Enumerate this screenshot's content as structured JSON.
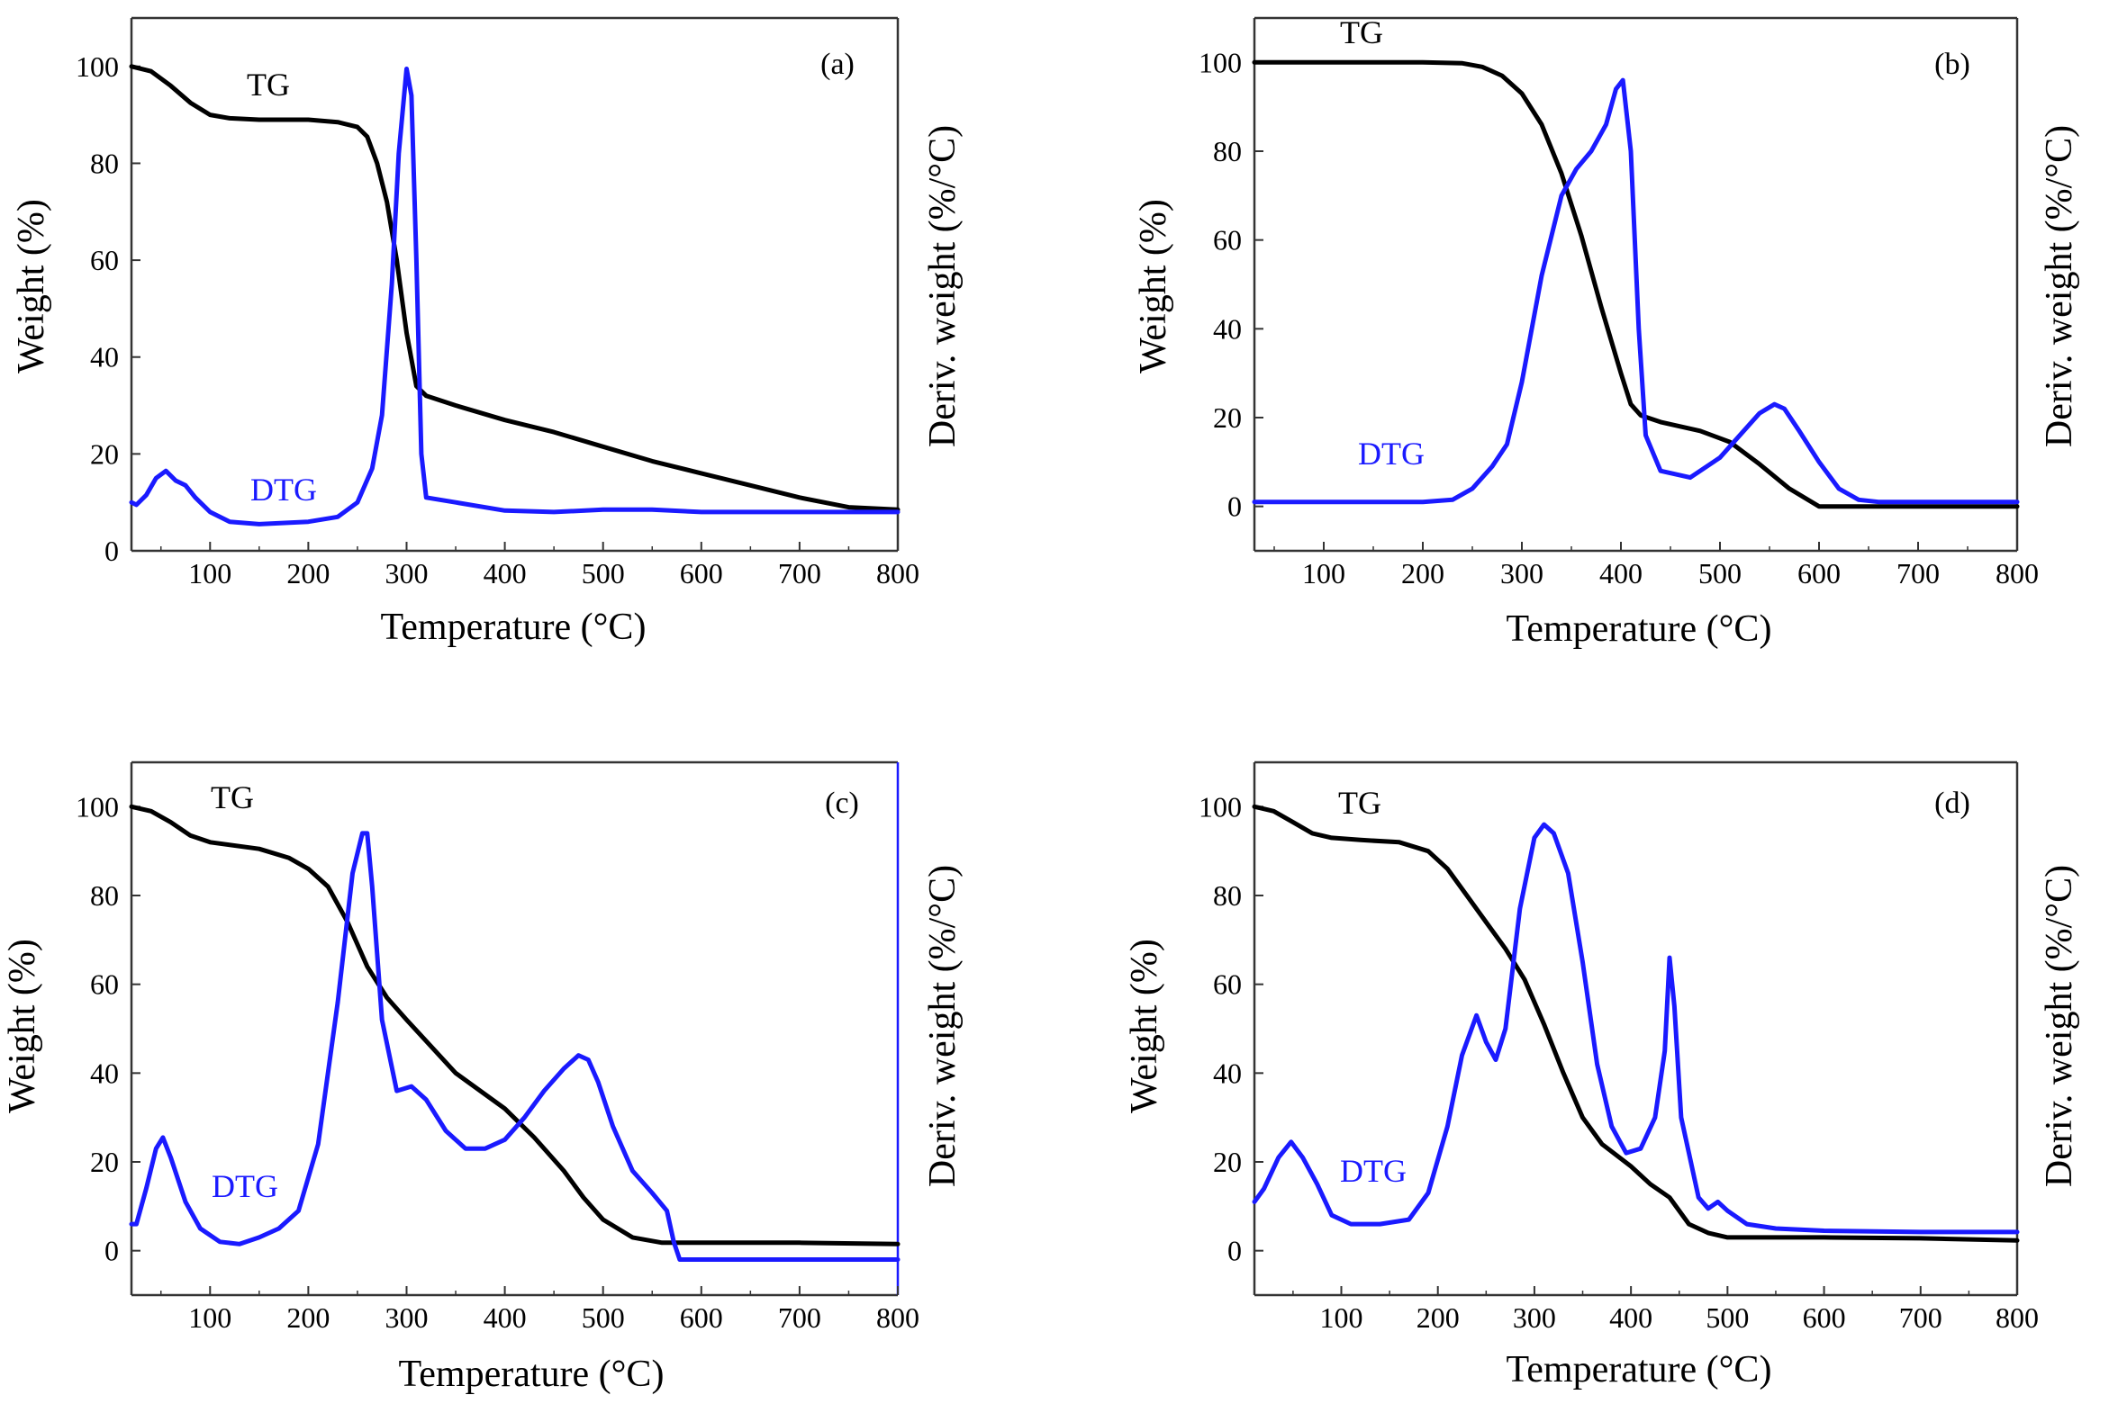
{
  "chart_data": [
    {
      "type": "line",
      "panel_label": "(a)",
      "xlabel": "Temperature (°C)",
      "ylabel": "Weight (%)",
      "ylabel_right": "Deriv. weight (%/°C)",
      "xlim": [
        20,
        800
      ],
      "ylim": [
        0,
        110
      ],
      "xticks": [
        100,
        200,
        300,
        400,
        500,
        600,
        700,
        800
      ],
      "yticks": [
        0,
        20,
        40,
        60,
        80,
        100
      ],
      "tg_label": "TG",
      "dtg_label": "DTG",
      "colors": {
        "tg": "#000000",
        "dtg": "#1a1aff"
      },
      "series": [
        {
          "name": "TG",
          "x": [
            20,
            40,
            60,
            80,
            100,
            120,
            150,
            200,
            230,
            250,
            260,
            270,
            280,
            290,
            300,
            310,
            320,
            350,
            400,
            450,
            500,
            550,
            600,
            650,
            700,
            750,
            800
          ],
          "y": [
            100,
            99,
            96,
            92.5,
            90,
            89.3,
            89,
            89,
            88.5,
            87.5,
            85.5,
            80,
            72,
            60,
            45,
            34,
            32,
            30,
            27,
            24.5,
            21.5,
            18.5,
            16,
            13.5,
            11,
            9,
            8.5
          ]
        },
        {
          "name": "DTG",
          "x": [
            20,
            25,
            35,
            45,
            55,
            65,
            75,
            85,
            100,
            120,
            150,
            200,
            230,
            250,
            265,
            275,
            285,
            292,
            300,
            305,
            310,
            315,
            320,
            350,
            400,
            450,
            500,
            550,
            600,
            700,
            800
          ],
          "y": [
            10,
            9.5,
            11.5,
            15,
            16.5,
            14.5,
            13.5,
            11,
            8,
            6,
            5.5,
            6,
            7,
            10,
            17,
            28,
            55,
            82,
            99.5,
            94,
            60,
            20,
            11,
            10,
            8.3,
            8,
            8.5,
            8.5,
            8,
            8,
            8
          ]
        }
      ]
    },
    {
      "type": "line",
      "panel_label": "(b)",
      "xlabel": "Temperature (°C)",
      "ylabel": "Weight (%)",
      "ylabel_right": "Deriv. weight (%/°C)",
      "xlim": [
        30,
        800
      ],
      "ylim": [
        -10,
        110
      ],
      "xticks": [
        100,
        200,
        300,
        400,
        500,
        600,
        700,
        800
      ],
      "yticks": [
        0,
        20,
        40,
        60,
        80,
        100
      ],
      "tg_label": "TG",
      "dtg_label": "DTG",
      "colors": {
        "tg": "#000000",
        "dtg": "#1a1aff"
      },
      "series": [
        {
          "name": "TG",
          "x": [
            30,
            100,
            200,
            240,
            260,
            280,
            300,
            320,
            340,
            360,
            380,
            400,
            410,
            420,
            440,
            480,
            510,
            540,
            570,
            600,
            700,
            800
          ],
          "y": [
            100,
            100,
            100,
            99.8,
            99,
            97,
            93,
            86,
            75,
            61,
            45,
            30,
            23,
            20.5,
            19,
            17,
            14.5,
            9.5,
            4,
            0,
            0,
            0
          ]
        },
        {
          "name": "DTG",
          "x": [
            30,
            100,
            200,
            230,
            250,
            270,
            285,
            300,
            320,
            340,
            355,
            370,
            385,
            395,
            402,
            410,
            418,
            425,
            440,
            470,
            500,
            520,
            540,
            555,
            565,
            580,
            600,
            620,
            640,
            660,
            700,
            800
          ],
          "y": [
            1,
            1,
            1,
            1.5,
            4,
            9,
            14,
            28,
            52,
            70,
            76,
            80,
            86,
            94,
            96,
            80,
            40,
            16,
            8,
            6.5,
            11,
            16,
            21,
            23,
            22,
            17,
            10,
            4,
            1.5,
            1,
            1,
            1
          ]
        }
      ]
    },
    {
      "type": "line",
      "panel_label": "(c)",
      "xlabel": "Temperature (°C)",
      "ylabel": "Weight (%)",
      "ylabel_right": "Deriv. weight (%/°C)",
      "xlim": [
        20,
        800
      ],
      "ylim": [
        -10,
        110
      ],
      "xticks": [
        100,
        200,
        300,
        400,
        500,
        600,
        700,
        800
      ],
      "yticks": [
        0,
        20,
        40,
        60,
        80,
        100
      ],
      "tg_label": "TG",
      "dtg_label": "DTG",
      "colors": {
        "tg": "#000000",
        "dtg": "#1a1aff"
      },
      "series": [
        {
          "name": "TG",
          "x": [
            20,
            40,
            60,
            80,
            100,
            150,
            180,
            200,
            220,
            240,
            260,
            280,
            300,
            350,
            400,
            430,
            460,
            480,
            500,
            530,
            560,
            580,
            600,
            700,
            800
          ],
          "y": [
            100,
            99,
            96.5,
            93.5,
            92,
            90.5,
            88.5,
            86,
            82,
            74,
            64,
            57,
            52,
            40,
            32,
            25.5,
            18,
            12,
            7,
            3,
            1.8,
            1.8,
            1.8,
            1.8,
            1.5
          ]
        },
        {
          "name": "DTG",
          "x": [
            20,
            25,
            35,
            45,
            52,
            60,
            75,
            90,
            110,
            130,
            150,
            170,
            190,
            210,
            230,
            245,
            255,
            260,
            265,
            275,
            290,
            305,
            320,
            340,
            360,
            380,
            400,
            420,
            440,
            460,
            475,
            485,
            495,
            510,
            530,
            550,
            565,
            572,
            578,
            585,
            600,
            700,
            800
          ],
          "y": [
            6,
            6,
            14,
            23,
            25.5,
            21,
            11,
            5,
            2,
            1.5,
            3,
            5,
            9,
            24,
            56,
            85,
            94,
            94,
            82,
            52,
            36,
            37,
            34,
            27,
            23,
            23,
            25,
            30,
            36,
            41,
            44,
            43,
            38,
            28,
            18,
            13,
            9,
            2,
            -2,
            -2,
            -2,
            -2,
            -2
          ]
        }
      ]
    },
    {
      "type": "line",
      "panel_label": "(d)",
      "xlabel": "Temperature (°C)",
      "ylabel": "Weight (%)",
      "ylabel_right": "Deriv. weight (%/°C)",
      "xlim": [
        10,
        800
      ],
      "ylim": [
        -10,
        110
      ],
      "xticks": [
        100,
        200,
        300,
        400,
        500,
        600,
        700,
        800
      ],
      "yticks": [
        0,
        20,
        40,
        60,
        80,
        100
      ],
      "tg_label": "TG",
      "dtg_label": "DTG",
      "colors": {
        "tg": "#000000",
        "dtg": "#1a1aff"
      },
      "series": [
        {
          "name": "TG",
          "x": [
            10,
            30,
            50,
            70,
            90,
            120,
            160,
            190,
            210,
            230,
            250,
            270,
            290,
            310,
            330,
            350,
            370,
            400,
            420,
            440,
            460,
            480,
            500,
            550,
            600,
            700,
            800
          ],
          "y": [
            100,
            99,
            96.5,
            94,
            93,
            92.5,
            92,
            90,
            86,
            80,
            74,
            68,
            61,
            51,
            40,
            30,
            24,
            19,
            15,
            12,
            6,
            4,
            3,
            3,
            3,
            2.8,
            2.3
          ]
        },
        {
          "name": "DTG",
          "x": [
            10,
            20,
            35,
            48,
            60,
            75,
            90,
            110,
            140,
            170,
            190,
            210,
            225,
            240,
            250,
            260,
            270,
            285,
            300,
            310,
            320,
            335,
            350,
            365,
            380,
            395,
            410,
            425,
            435,
            440,
            445,
            452,
            460,
            470,
            480,
            490,
            500,
            520,
            550,
            600,
            700,
            800
          ],
          "y": [
            11,
            14,
            21,
            24.5,
            21,
            15,
            8,
            6,
            6,
            7,
            13,
            28,
            44,
            53,
            47,
            43,
            50,
            77,
            93,
            96,
            94,
            85,
            65,
            42,
            28,
            22,
            23,
            30,
            45,
            66,
            55,
            30,
            22,
            12,
            9.5,
            11,
            9,
            6,
            5,
            4.5,
            4.2,
            4.2
          ]
        }
      ]
    }
  ]
}
